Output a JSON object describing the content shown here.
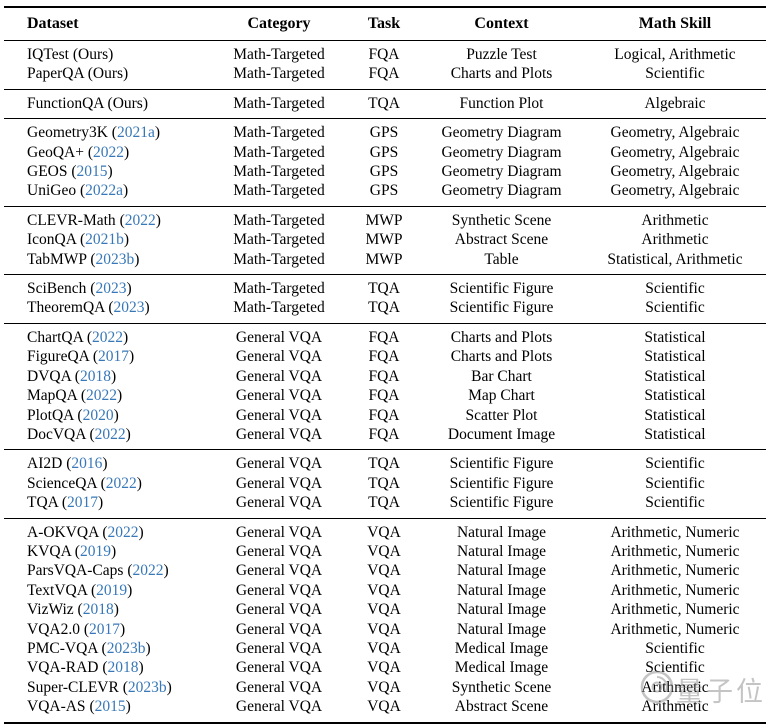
{
  "colors": {
    "citation_blue": "#3878b8",
    "text_black": "#000000",
    "rule_black": "#000000",
    "watermark_gray": "#8a8a8a"
  },
  "header": {
    "columns": [
      "Dataset",
      "Category",
      "Task",
      "Context",
      "Math Skill"
    ]
  },
  "table": {
    "groups": [
      {
        "rows": [
          {
            "name": "IQTest",
            "cite": "Ours",
            "cite_is_link": false,
            "category": "Math-Targeted",
            "task": "FQA",
            "context": "Puzzle Test",
            "skill": "Logical, Arithmetic"
          },
          {
            "name": "PaperQA",
            "cite": "Ours",
            "cite_is_link": false,
            "category": "Math-Targeted",
            "task": "FQA",
            "context": "Charts and Plots",
            "skill": "Scientific"
          }
        ]
      },
      {
        "rows": [
          {
            "name": "FunctionQA",
            "cite": "Ours",
            "cite_is_link": false,
            "category": "Math-Targeted",
            "task": "TQA",
            "context": "Function Plot",
            "skill": "Algebraic"
          }
        ]
      },
      {
        "rows": [
          {
            "name": "Geometry3K",
            "cite": "2021a",
            "cite_is_link": true,
            "category": "Math-Targeted",
            "task": "GPS",
            "context": "Geometry Diagram",
            "skill": "Geometry, Algebraic"
          },
          {
            "name": "GeoQA+",
            "cite": "2022",
            "cite_is_link": true,
            "category": "Math-Targeted",
            "task": "GPS",
            "context": "Geometry Diagram",
            "skill": "Geometry, Algebraic"
          },
          {
            "name": "GEOS",
            "cite": "2015",
            "cite_is_link": true,
            "category": "Math-Targeted",
            "task": "GPS",
            "context": "Geometry Diagram",
            "skill": "Geometry, Algebraic"
          },
          {
            "name": "UniGeo",
            "cite": "2022a",
            "cite_is_link": true,
            "category": "Math-Targeted",
            "task": "GPS",
            "context": "Geometry Diagram",
            "skill": "Geometry, Algebraic"
          }
        ]
      },
      {
        "rows": [
          {
            "name": "CLEVR-Math",
            "cite": "2022",
            "cite_is_link": true,
            "category": "Math-Targeted",
            "task": "MWP",
            "context": "Synthetic Scene",
            "skill": "Arithmetic"
          },
          {
            "name": "IconQA",
            "cite": "2021b",
            "cite_is_link": true,
            "category": "Math-Targeted",
            "task": "MWP",
            "context": "Abstract Scene",
            "skill": "Arithmetic"
          },
          {
            "name": "TabMWP",
            "cite": "2023b",
            "cite_is_link": true,
            "category": "Math-Targeted",
            "task": "MWP",
            "context": "Table",
            "skill": "Statistical, Arithmetic"
          }
        ]
      },
      {
        "rows": [
          {
            "name": "SciBench",
            "cite": "2023",
            "cite_is_link": true,
            "category": "Math-Targeted",
            "task": "TQA",
            "context": "Scientific Figure",
            "skill": "Scientific"
          },
          {
            "name": "TheoremQA",
            "cite": "2023",
            "cite_is_link": true,
            "category": "Math-Targeted",
            "task": "TQA",
            "context": "Scientific Figure",
            "skill": "Scientific"
          }
        ]
      },
      {
        "rows": [
          {
            "name": "ChartQA",
            "cite": "2022",
            "cite_is_link": true,
            "category": "General VQA",
            "task": "FQA",
            "context": "Charts and Plots",
            "skill": "Statistical"
          },
          {
            "name": "FigureQA",
            "cite": "2017",
            "cite_is_link": true,
            "category": "General VQA",
            "task": "FQA",
            "context": "Charts and Plots",
            "skill": "Statistical"
          },
          {
            "name": "DVQA",
            "cite": "2018",
            "cite_is_link": true,
            "category": "General VQA",
            "task": "FQA",
            "context": "Bar Chart",
            "skill": "Statistical"
          },
          {
            "name": "MapQA",
            "cite": "2022",
            "cite_is_link": true,
            "category": "General VQA",
            "task": "FQA",
            "context": "Map Chart",
            "skill": "Statistical"
          },
          {
            "name": "PlotQA",
            "cite": "2020",
            "cite_is_link": true,
            "category": "General VQA",
            "task": "FQA",
            "context": "Scatter Plot",
            "skill": "Statistical"
          },
          {
            "name": "DocVQA",
            "cite": "2022",
            "cite_is_link": true,
            "category": "General VQA",
            "task": "FQA",
            "context": "Document Image",
            "skill": "Statistical"
          }
        ]
      },
      {
        "rows": [
          {
            "name": "AI2D",
            "cite": "2016",
            "cite_is_link": true,
            "category": "General VQA",
            "task": "TQA",
            "context": "Scientific Figure",
            "skill": "Scientific"
          },
          {
            "name": "ScienceQA",
            "cite": "2022",
            "cite_is_link": true,
            "category": "General VQA",
            "task": "TQA",
            "context": "Scientific Figure",
            "skill": "Scientific"
          },
          {
            "name": "TQA",
            "cite": "2017",
            "cite_is_link": true,
            "category": "General VQA",
            "task": "TQA",
            "context": "Scientific Figure",
            "skill": "Scientific"
          }
        ]
      },
      {
        "rows": [
          {
            "name": "A-OKVQA",
            "cite": "2022",
            "cite_is_link": true,
            "category": "General VQA",
            "task": "VQA",
            "context": "Natural Image",
            "skill": "Arithmetic, Numeric"
          },
          {
            "name": "KVQA",
            "cite": "2019",
            "cite_is_link": true,
            "category": "General VQA",
            "task": "VQA",
            "context": "Natural Image",
            "skill": "Arithmetic, Numeric"
          },
          {
            "name": "ParsVQA-Caps",
            "cite": "2022",
            "cite_is_link": true,
            "category": "General VQA",
            "task": "VQA",
            "context": "Natural Image",
            "skill": "Arithmetic, Numeric"
          },
          {
            "name": "TextVQA",
            "cite": "2019",
            "cite_is_link": true,
            "category": "General VQA",
            "task": "VQA",
            "context": "Natural Image",
            "skill": "Arithmetic, Numeric"
          },
          {
            "name": "VizWiz",
            "cite": "2018",
            "cite_is_link": true,
            "category": "General VQA",
            "task": "VQA",
            "context": "Natural Image",
            "skill": "Arithmetic, Numeric"
          },
          {
            "name": "VQA2.0",
            "cite": "2017",
            "cite_is_link": true,
            "category": "General VQA",
            "task": "VQA",
            "context": "Natural Image",
            "skill": "Arithmetic, Numeric"
          },
          {
            "name": "PMC-VQA",
            "cite": "2023b",
            "cite_is_link": true,
            "category": "General VQA",
            "task": "VQA",
            "context": "Medical Image",
            "skill": "Scientific"
          },
          {
            "name": "VQA-RAD",
            "cite": "2018",
            "cite_is_link": true,
            "category": "General VQA",
            "task": "VQA",
            "context": "Medical Image",
            "skill": "Scientific"
          },
          {
            "name": "Super-CLEVR",
            "cite": "2023b",
            "cite_is_link": true,
            "category": "General VQA",
            "task": "VQA",
            "context": "Synthetic Scene",
            "skill": "Arithmetic"
          },
          {
            "name": "VQA-AS",
            "cite": "2015",
            "cite_is_link": true,
            "category": "General VQA",
            "task": "VQA",
            "context": "Abstract Scene",
            "skill": "Arithmetic"
          }
        ]
      }
    ]
  },
  "watermark": {
    "text": "量子位"
  }
}
